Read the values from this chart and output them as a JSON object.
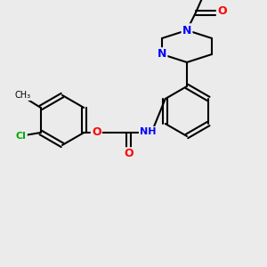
{
  "bg_color": "#ebebeb",
  "bond_color": "#000000",
  "atom_colors": {
    "O": "#ff0000",
    "N": "#0000ff",
    "Cl": "#00aa00",
    "C": "#000000",
    "H": "#808080"
  },
  "title": "",
  "figsize": [
    3.0,
    3.0
  ],
  "dpi": 100
}
